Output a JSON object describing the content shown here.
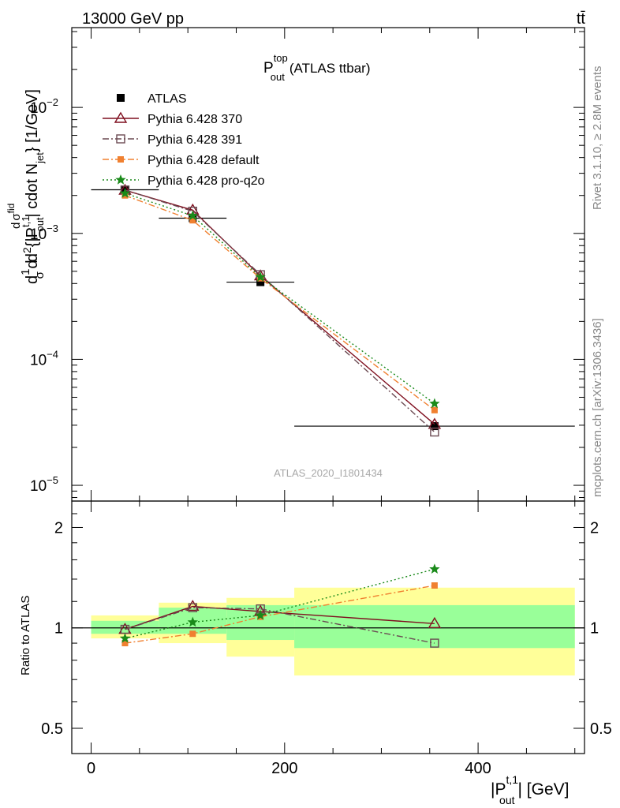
{
  "header": {
    "energy_label": "13000 GeV pp",
    "process_label": "tt̄"
  },
  "side_labels": {
    "rivet": "Rivet 3.1.10, ≥ 2.8M events",
    "mcplots": "mcplots.cern.ch [arXiv:1306.3436]"
  },
  "watermark": "ATLAS_2020_I1801434",
  "colors": {
    "data": "#000000",
    "p370": "#7f0f1f",
    "p391": "#6b4a52",
    "pdefault": "#f08030",
    "pq2o": "#1a8a1a",
    "band_inner": "#99ff99",
    "band_outer": "#ffff99"
  },
  "chart_data": [
    {
      "type": "line",
      "title": "P_out^top (ATLAS ttbar)",
      "title_parts": {
        "main": "P",
        "sup": "top",
        "sub": "out",
        "rest": "(ATLAS ttbar)"
      },
      "ylabel": "d σ d σ d²{|P_out^t,1| cdot N_jet} [1/GeV]",
      "ylabel_parts": {
        "a": "d",
        "b": "1",
        "c": "d",
        "d": "σ",
        "e": "d",
        "f": "σ",
        "g": "fid",
        "h": "d",
        "i": "2",
        "j": "{|P",
        "k": "t,1",
        "l": "out",
        "m": "| cdot N",
        "n": "jet",
        "o": "} [1/GeV]"
      },
      "yscale": "log",
      "ylim": [
        7.5e-06,
        0.043
      ],
      "xlim": [
        -20,
        510
      ],
      "ytick_labels": [
        {
          "base": "10",
          "exp": "−5",
          "value": 1e-05
        },
        {
          "base": "10",
          "exp": "−4",
          "value": 0.0001
        },
        {
          "base": "10",
          "exp": "−3",
          "value": 0.001
        },
        {
          "base": "10",
          "exp": "−2",
          "value": 0.01
        }
      ],
      "legend_position": "top-left",
      "series": [
        {
          "name": "ATLAS",
          "key": "data",
          "x": [
            35,
            105,
            175,
            355
          ],
          "y": [
            0.00222,
            0.00132,
            0.00041,
            2.95e-05
          ],
          "xerr": [
            35,
            35,
            35,
            145
          ]
        },
        {
          "name": "Pythia 6.428 370",
          "key": "p370",
          "x": [
            35,
            105,
            175,
            355
          ],
          "y": [
            0.0022,
            0.00153,
            0.00046,
            3.05e-05
          ]
        },
        {
          "name": "Pythia 6.428 391",
          "key": "p391",
          "x": [
            35,
            105,
            175,
            355
          ],
          "y": [
            0.00221,
            0.0015,
            0.00047,
            2.65e-05
          ]
        },
        {
          "name": "Pythia 6.428 default",
          "key": "pdefault",
          "x": [
            35,
            105,
            175,
            355
          ],
          "y": [
            0.002,
            0.00127,
            0.00044,
            3.95e-05
          ]
        },
        {
          "name": "Pythia 6.428 pro-q2o",
          "key": "pq2o",
          "x": [
            35,
            105,
            175,
            355
          ],
          "y": [
            0.00208,
            0.00138,
            0.00045,
            4.45e-05
          ]
        }
      ]
    },
    {
      "type": "line",
      "ylabel": "Ratio to ATLAS",
      "xlabel": "|P_out^t,1| [GeV]",
      "xlabel_parts": {
        "a": "|P",
        "sup": "t,1",
        "sub": "out",
        "b": "| [GeV]"
      },
      "xlim": [
        -20,
        510
      ],
      "ylim": [
        0.42,
        2.4
      ],
      "yscale": "log",
      "ytick_labels": [
        {
          "label": "0.5",
          "value": 0.5
        },
        {
          "label": "1",
          "value": 1
        },
        {
          "label": "2",
          "value": 2
        }
      ],
      "xtick_labels": [
        {
          "label": "0",
          "value": 0
        },
        {
          "label": "200",
          "value": 200
        },
        {
          "label": "400",
          "value": 400
        }
      ],
      "bands": [
        {
          "x0": 0,
          "x1": 70,
          "inner": [
            0.96,
            1.05
          ],
          "outer": [
            0.93,
            1.09
          ]
        },
        {
          "x0": 70,
          "x1": 140,
          "inner": [
            0.96,
            1.15
          ],
          "outer": [
            0.9,
            1.19
          ]
        },
        {
          "x0": 140,
          "x1": 210,
          "inner": [
            0.92,
            1.17
          ],
          "outer": [
            0.82,
            1.23
          ]
        },
        {
          "x0": 210,
          "x1": 500,
          "inner": [
            0.87,
            1.17
          ],
          "outer": [
            0.72,
            1.32
          ]
        }
      ],
      "series": [
        {
          "name": "Pythia 6.428 370",
          "key": "p370",
          "x": [
            35,
            105,
            175,
            355
          ],
          "y": [
            0.99,
            1.16,
            1.12,
            1.03
          ]
        },
        {
          "name": "Pythia 6.428 391",
          "key": "p391",
          "x": [
            35,
            105,
            175,
            355
          ],
          "y": [
            0.99,
            1.15,
            1.14,
            0.9
          ]
        },
        {
          "name": "Pythia 6.428 default",
          "key": "pdefault",
          "x": [
            35,
            105,
            175,
            355
          ],
          "y": [
            0.9,
            0.96,
            1.08,
            1.34
          ]
        },
        {
          "name": "Pythia 6.428 pro-q2o",
          "key": "pq2o",
          "x": [
            35,
            105,
            175,
            355
          ],
          "y": [
            0.93,
            1.04,
            1.09,
            1.5
          ]
        }
      ]
    }
  ]
}
